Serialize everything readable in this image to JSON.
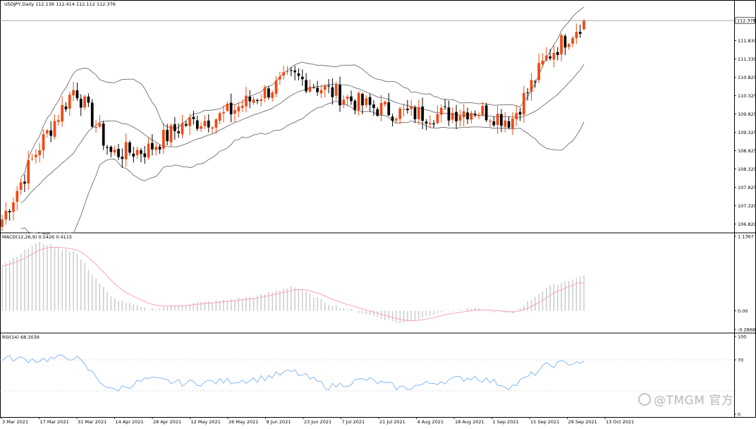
{
  "panes": {
    "main": {
      "title": "USDJPY,Daily  112.136 112.414 112.112 112.376",
      "last_price_label": "112.376",
      "price_axis_labels": [
        "111.830",
        "111.330",
        "110.825",
        "110.325",
        "109.825",
        "109.325",
        "108.825",
        "108.325",
        "107.825",
        "107.320",
        "106.820"
      ]
    },
    "macd": {
      "title": "MACD(12,26,9) 0.5426 0.4115",
      "axis_labels": [
        "1.1367",
        "0.00",
        "-0.2868"
      ]
    },
    "rsi": {
      "title": "RSI(14) 68.3039",
      "axis_labels": [
        "100",
        "70",
        "0"
      ]
    }
  },
  "date_axis": [
    "3 Mar 2021",
    "17 Mar 2021",
    "31 Mar 2021",
    "14 Apr 2021",
    "28 Apr 2021",
    "12 May 2021",
    "26 May 2021",
    "9 Jun 2021",
    "23 Jun 2021",
    "7 Jul 2021",
    "21 Jul 2021",
    "4 Aug 2021",
    "18 Aug 2021",
    "1 Sep 2021",
    "15 Sep 2021",
    "29 Sep 2021",
    "13 Oct 2021"
  ],
  "watermark": "@TMGM 官方",
  "colors": {
    "bull": "#ef4a14",
    "bear": "#000000",
    "bands": "#6f6f6f",
    "macd_hist": "#c8c8c8",
    "macd_signal": "#f4a6b3",
    "rsi_line": "#87b9f2",
    "grid_line": "#c0c0c0"
  },
  "chart_data": [
    {
      "type": "candlestick",
      "symbol": "USDJPY",
      "timeframe": "Daily",
      "ohlc_last": {
        "open": 112.136,
        "high": 112.414,
        "low": 112.112,
        "close": 112.376
      },
      "indicators": [
        "Bollinger Bands"
      ],
      "close_path": [
        [
          "3 Mar 2021",
          106.95
        ],
        [
          "17 Mar 2021",
          108.9
        ],
        [
          "31 Mar 2021",
          110.55
        ],
        [
          "14 Apr 2021",
          108.75
        ],
        [
          "28 Apr 2021",
          108.85
        ],
        [
          "12 May 2021",
          109.55
        ],
        [
          "26 May 2021",
          109.75
        ],
        [
          "9 Jun 2021",
          110.3
        ],
        [
          "23 Jun 2021",
          110.85
        ],
        [
          "7 Jul 2021",
          110.45
        ],
        [
          "21 Jul 2021",
          110.05
        ],
        [
          "4 Aug 2021",
          109.85
        ],
        [
          "18 Aug 2021",
          109.8
        ],
        [
          "1 Sep 2021",
          109.95
        ],
        [
          "15 Sep 2021",
          109.65
        ],
        [
          "29 Sep 2021",
          111.4
        ],
        [
          "13 Oct 2021",
          112.376
        ]
      ],
      "ylim": [
        106.6,
        112.9
      ]
    },
    {
      "type": "bar",
      "name": "MACD(12,26,9)",
      "last_values": {
        "macd": 0.5426,
        "signal": 0.4115
      },
      "macd_path": [
        [
          "3 Mar 2021",
          0.7
        ],
        [
          "17 Mar 2021",
          1.05
        ],
        [
          "31 Mar 2021",
          0.9
        ],
        [
          "14 Apr 2021",
          0.2
        ],
        [
          "28 Apr 2021",
          0.02
        ],
        [
          "12 May 2021",
          0.1
        ],
        [
          "26 May 2021",
          0.15
        ],
        [
          "9 Jun 2021",
          0.22
        ],
        [
          "23 Jun 2021",
          0.38
        ],
        [
          "7 Jul 2021",
          0.1
        ],
        [
          "21 Jul 2021",
          -0.05
        ],
        [
          "4 Aug 2021",
          -0.2
        ],
        [
          "18 Aug 2021",
          -0.02
        ],
        [
          "1 Sep 2021",
          0.03
        ],
        [
          "15 Sep 2021",
          -0.05
        ],
        [
          "29 Sep 2021",
          0.36
        ],
        [
          "13 Oct 2021",
          0.5426
        ]
      ],
      "ylim": [
        -0.2868,
        1.1367
      ]
    },
    {
      "type": "line",
      "name": "RSI(14)",
      "last_value": 68.3039,
      "levels": [
        30,
        70
      ],
      "rsi_path": [
        [
          "3 Mar 2021",
          72
        ],
        [
          "17 Mar 2021",
          70
        ],
        [
          "31 Mar 2021",
          74
        ],
        [
          "14 Apr 2021",
          30
        ],
        [
          "28 Apr 2021",
          45
        ],
        [
          "12 May 2021",
          40
        ],
        [
          "26 May 2021",
          42
        ],
        [
          "9 Jun 2021",
          45
        ],
        [
          "23 Jun 2021",
          55
        ],
        [
          "7 Jul 2021",
          35
        ],
        [
          "21 Jul 2021",
          45
        ],
        [
          "4 Aug 2021",
          33
        ],
        [
          "18 Aug 2021",
          42
        ],
        [
          "1 Sep 2021",
          48
        ],
        [
          "15 Sep 2021",
          35
        ],
        [
          "29 Sep 2021",
          63
        ],
        [
          "13 Oct 2021",
          68.3039
        ]
      ],
      "ylim": [
        0,
        100
      ]
    }
  ]
}
